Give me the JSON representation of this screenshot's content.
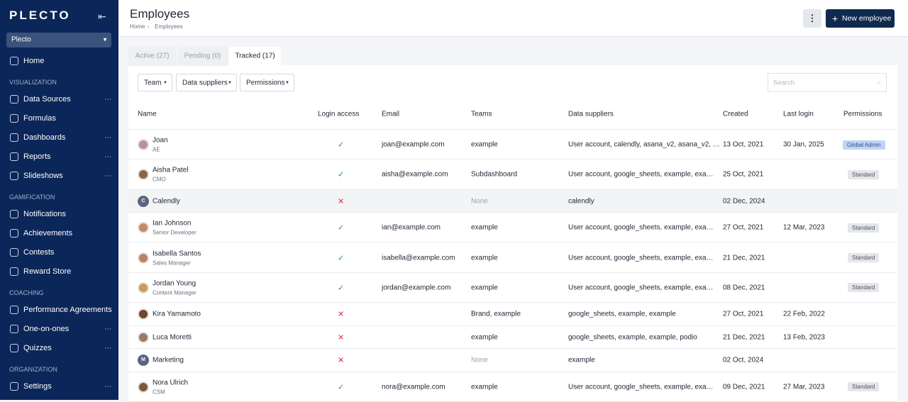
{
  "sidebar": {
    "logo": "PLECTO",
    "workspace": "Plecto",
    "sections": [
      {
        "heading": null,
        "items": [
          {
            "label": "Home",
            "more": false
          }
        ]
      },
      {
        "heading": "VISUALIZATION",
        "items": [
          {
            "label": "Data Sources",
            "more": true
          },
          {
            "label": "Formulas",
            "more": false
          },
          {
            "label": "Dashboards",
            "more": true
          },
          {
            "label": "Reports",
            "more": true
          },
          {
            "label": "Slideshows",
            "more": true
          }
        ]
      },
      {
        "heading": "GAMIFICATION",
        "items": [
          {
            "label": "Notifications",
            "more": false
          },
          {
            "label": "Achievements",
            "more": false
          },
          {
            "label": "Contests",
            "more": false
          },
          {
            "label": "Reward Store",
            "more": false
          }
        ]
      },
      {
        "heading": "COACHING",
        "items": [
          {
            "label": "Performance Agreements",
            "more": false
          },
          {
            "label": "One-on-ones",
            "more": true
          },
          {
            "label": "Quizzes",
            "more": true
          }
        ]
      },
      {
        "heading": "ORGANIZATION",
        "items": [
          {
            "label": "Settings",
            "more": true
          }
        ]
      }
    ]
  },
  "header": {
    "title": "Employees",
    "breadcrumb": [
      "Home",
      "Employees"
    ],
    "new_button": "New employee"
  },
  "tabs": {
    "items": [
      "Active (27)",
      "Pending (0)",
      "Tracked (17)"
    ],
    "active": 2
  },
  "filters": {
    "items": [
      "Team",
      "Data suppliers",
      "Permissions"
    ],
    "search": "Search"
  },
  "table": {
    "columns": [
      "Name",
      "Login access",
      "Email",
      "Teams",
      "Data suppliers",
      "Created",
      "Last login",
      "Permissions"
    ],
    "rows": [
      {
        "initial": null,
        "name": "Joan",
        "subtitle": "AE",
        "login": "✓",
        "email": "joan@example.com",
        "teams": "example",
        "suppliers": "User account, calendly, asana_v2, asana_v2, …",
        "created": "13 Oct, 2021",
        "last_login": "30 Jan, 2025",
        "permission": "Global Admin"
      },
      {
        "initial": null,
        "name": "Aisha Patel",
        "subtitle": "CMO",
        "login": "✓",
        "email": "aisha@example.com",
        "teams": "Subdashboard",
        "suppliers": "User account, google_sheets, example, exa…",
        "created": "25 Oct, 2021",
        "last_login": null,
        "permission": "Standard"
      },
      {
        "initial": "C",
        "name": "Calendly",
        "subtitle": null,
        "login": "✕",
        "email": null,
        "teams": "None",
        "suppliers": "calendly",
        "created": "02 Dec, 2024",
        "last_login": null,
        "permission": null
      },
      {
        "initial": null,
        "name": "Ian Johnson",
        "subtitle": "Senior Developer",
        "login": "✓",
        "email": "ian@example.com",
        "teams": "example",
        "suppliers": "User account, google_sheets, example, exa…",
        "created": "27 Oct, 2021",
        "last_login": "12 Mar, 2023",
        "permission": "Standard"
      },
      {
        "initial": null,
        "name": "Isabella Santos",
        "subtitle": "Sales Manager",
        "login": "✓",
        "email": "isabella@example.com",
        "teams": "example",
        "suppliers": "User account, google_sheets, example, exa…",
        "created": "21 Dec, 2021",
        "last_login": null,
        "permission": "Standard"
      },
      {
        "initial": null,
        "name": "Jordan Young",
        "subtitle": "Content Manager",
        "login": "✓",
        "email": "jordan@example.com",
        "teams": "example",
        "suppliers": "User account, google_sheets, example, exa…",
        "created": "08 Dec, 2021",
        "last_login": null,
        "permission": "Standard"
      },
      {
        "initial": null,
        "name": "Kira Yamamoto",
        "subtitle": null,
        "login": "✕",
        "email": null,
        "teams": "Brand, example",
        "suppliers": "google_sheets, example, example",
        "created": "27 Oct, 2021",
        "last_login": "22 Feb, 2022",
        "permission": null
      },
      {
        "initial": null,
        "name": "Luca Moretti",
        "subtitle": null,
        "login": "✕",
        "email": null,
        "teams": "example",
        "suppliers": "google_sheets, example, example, podio",
        "created": "21 Dec, 2021",
        "last_login": "13 Feb, 2023",
        "permission": null
      },
      {
        "initial": "M",
        "name": "Marketing",
        "subtitle": null,
        "login": "✕",
        "email": null,
        "teams": "None",
        "suppliers": "example",
        "created": "02 Oct, 2024",
        "last_login": null,
        "permission": null
      },
      {
        "initial": null,
        "name": "Nora Ulrich",
        "subtitle": "CSM",
        "login": "✓",
        "email": "nora@example.com",
        "teams": "example",
        "suppliers": "User account, google_sheets, example, exa…",
        "created": "09 Dec, 2021",
        "last_login": "27 Mar, 2023",
        "permission": "Standard"
      }
    ]
  }
}
